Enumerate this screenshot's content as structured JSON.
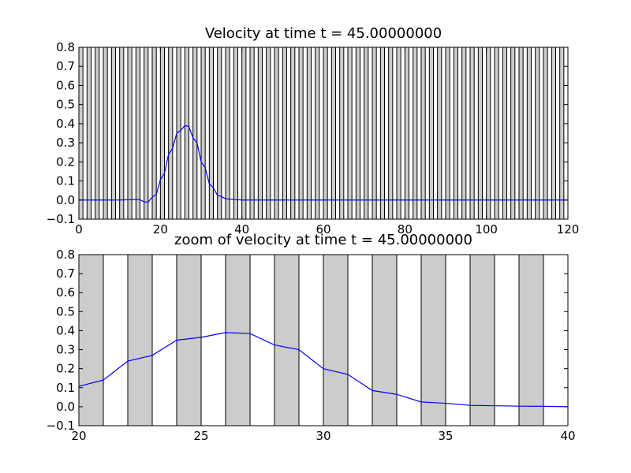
{
  "chart_data": [
    {
      "type": "line",
      "title": "Velocity at time t =    45.00000000",
      "xlabel": "",
      "ylabel": "",
      "xlim": [
        0,
        120
      ],
      "ylim": [
        -0.1,
        0.8
      ],
      "xticks": [
        0,
        20,
        40,
        60,
        80,
        100,
        120
      ],
      "yticks": [
        -0.1,
        0.0,
        0.1,
        0.2,
        0.3,
        0.4,
        0.5,
        0.6,
        0.7,
        0.8
      ],
      "xtick_labels": [
        "0",
        "20",
        "40",
        "60",
        "80",
        "100",
        "120"
      ],
      "ytick_labels": [
        "−0.1",
        "0.0",
        "0.1",
        "0.2",
        "0.3",
        "0.4",
        "0.5",
        "0.6",
        "0.7",
        "0.8"
      ],
      "grid": false,
      "background_bars": {
        "interval": 1,
        "shaded_from": 0,
        "color": "#cccccc",
        "edge_color": "#000000"
      },
      "series": [
        {
          "color": "#0000ff",
          "x": [
            0,
            5,
            10,
            14,
            15,
            16,
            17,
            18,
            19,
            20,
            21,
            22,
            23,
            24,
            25,
            26,
            27,
            28,
            29,
            30,
            31,
            32,
            33,
            34,
            35,
            36,
            37,
            38,
            39,
            40,
            60,
            80,
            100,
            120
          ],
          "y": [
            0.0,
            0.0,
            0.0,
            0.003,
            0.002,
            -0.01,
            -0.01,
            0.015,
            0.03,
            0.107,
            0.14,
            0.24,
            0.27,
            0.35,
            0.365,
            0.39,
            0.385,
            0.325,
            0.3,
            0.2,
            0.17,
            0.085,
            0.065,
            0.025,
            0.018,
            0.007,
            0.005,
            0.003,
            0.002,
            0.0,
            0.0,
            0.0,
            0.0,
            0.0
          ]
        }
      ]
    },
    {
      "type": "line",
      "title": "zoom of velocity at time t =    45.00000000",
      "xlabel": "",
      "ylabel": "",
      "xlim": [
        20,
        40
      ],
      "ylim": [
        -0.1,
        0.8
      ],
      "xticks": [
        20,
        25,
        30,
        35,
        40
      ],
      "yticks": [
        -0.1,
        0.0,
        0.1,
        0.2,
        0.3,
        0.4,
        0.5,
        0.6,
        0.7,
        0.8
      ],
      "xtick_labels": [
        "20",
        "25",
        "30",
        "35",
        "40"
      ],
      "ytick_labels": [
        "−0.1",
        "0.0",
        "0.1",
        "0.2",
        "0.3",
        "0.4",
        "0.5",
        "0.6",
        "0.7",
        "0.8"
      ],
      "grid": false,
      "background_bars": {
        "interval": 1,
        "shaded_from": 20,
        "color": "#cccccc",
        "edge_color": "#000000"
      },
      "series": [
        {
          "color": "#0000ff",
          "x": [
            20,
            21,
            22,
            23,
            24,
            25,
            26,
            27,
            28,
            29,
            30,
            31,
            32,
            33,
            34,
            35,
            36,
            37,
            38,
            39,
            40
          ],
          "y": [
            0.107,
            0.14,
            0.24,
            0.27,
            0.35,
            0.365,
            0.39,
            0.385,
            0.325,
            0.3,
            0.2,
            0.17,
            0.085,
            0.065,
            0.025,
            0.018,
            0.007,
            0.005,
            0.003,
            0.002,
            0.0
          ]
        }
      ]
    }
  ]
}
